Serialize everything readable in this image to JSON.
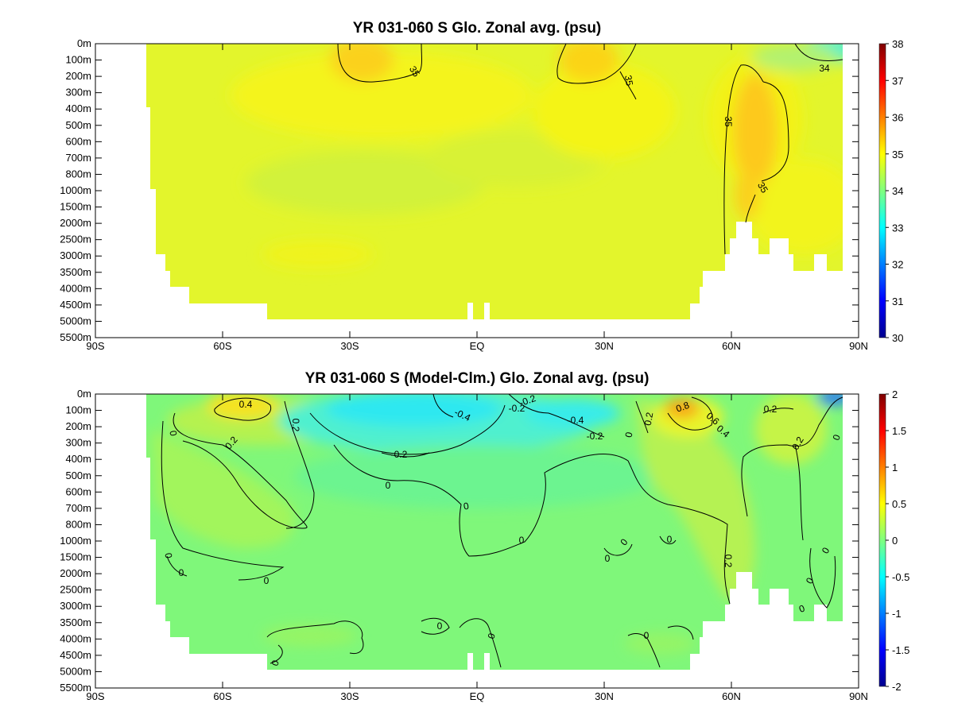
{
  "chart_data": [
    {
      "type": "heatmap",
      "title": "YR 031-060 S Glo. Zonal avg. (psu)",
      "xlabel": "",
      "ylabel": "",
      "x_ticks": [
        "90S",
        "60S",
        "30S",
        "EQ",
        "30N",
        "60N",
        "90N"
      ],
      "x_tick_values": [
        -90,
        -60,
        -30,
        0,
        30,
        60,
        90
      ],
      "y_ticks": [
        "0m",
        "100m",
        "200m",
        "300m",
        "400m",
        "500m",
        "600m",
        "700m",
        "800m",
        "1000m",
        "1500m",
        "2000m",
        "2500m",
        "3000m",
        "3500m",
        "4000m",
        "4500m",
        "5000m",
        "5500m"
      ],
      "colorbar": {
        "min": 30,
        "max": 38,
        "ticks": [
          "30",
          "31",
          "32",
          "33",
          "34",
          "35",
          "36",
          "37",
          "38"
        ]
      },
      "contour_labels": [
        "35",
        "35",
        "35",
        "35",
        "34"
      ],
      "regions": [
        {
          "region": "southern subtropical near-surface maximum, ~30S-20S, 0-200m",
          "value": 35.6
        },
        {
          "region": "northern subtropical near-surface maximum, ~20N-30N, 0-200m",
          "value": 35.4
        },
        {
          "region": "Arctic surface, ~85N-90N, 0-100m",
          "value": 33.4
        },
        {
          "region": "North Atlantic-type deep tongue, ~60N-68N, 200-2000m",
          "value": 35.3
        },
        {
          "region": "bulk deep ocean",
          "value": 34.7
        },
        {
          "region": "intermediate water, ~45S-20N, 600-1500m",
          "value": 34.5
        }
      ]
    },
    {
      "type": "heatmap",
      "title": "YR 031-060 S (Model-Clm.) Glo. Zonal avg. (psu)",
      "xlabel": "",
      "ylabel": "",
      "x_ticks": [
        "90S",
        "60S",
        "30S",
        "EQ",
        "30N",
        "60N",
        "90N"
      ],
      "x_tick_values": [
        -90,
        -60,
        -30,
        0,
        30,
        60,
        90
      ],
      "y_ticks": [
        "0m",
        "100m",
        "200m",
        "300m",
        "400m",
        "500m",
        "600m",
        "700m",
        "800m",
        "1000m",
        "1500m",
        "2000m",
        "2500m",
        "3000m",
        "3500m",
        "4000m",
        "4500m",
        "5000m",
        "5500m"
      ],
      "colorbar": {
        "min": -2,
        "max": 2,
        "ticks": [
          "-2",
          "-1.5",
          "-1",
          "-0.5",
          "0",
          "0.5",
          "1",
          "1.5",
          "2"
        ]
      },
      "contour_labels": [
        "0.4",
        "0.2",
        "0.2",
        "0",
        "0",
        "-0.4",
        "-0.2",
        "-0.2",
        "-0.4",
        "-0.2",
        "-0.2",
        "0",
        "0.2",
        "0.8",
        "0.6",
        "0.4",
        "0.2",
        "0.2",
        "0",
        "0",
        "0",
        "0",
        "0",
        "0",
        "0.2",
        "0",
        "0",
        "0",
        "0",
        "0",
        "0",
        "0",
        "0",
        "0",
        "0"
      ],
      "regions": [
        {
          "region": "southern mid-latitudes, ~55S-45S, 0-200m",
          "value": 0.4
        },
        {
          "region": "tropical near-surface, ~25S-25N, 0-200m",
          "value": -0.5
        },
        {
          "region": "northern mid-latitudes, ~45N-55N, 0-200m",
          "value": 0.8
        },
        {
          "region": "Arctic surface, ~85N-90N, 0-100m",
          "value": -1.0
        },
        {
          "region": "northern deep ocean, ~30N-65N, 300-2500m",
          "value": 0.2
        },
        {
          "region": "southern intermediate water, ~60S-40S, 300-1000m",
          "value": 0.1
        },
        {
          "region": "bulk deep ocean",
          "value": -0.05
        }
      ]
    }
  ]
}
